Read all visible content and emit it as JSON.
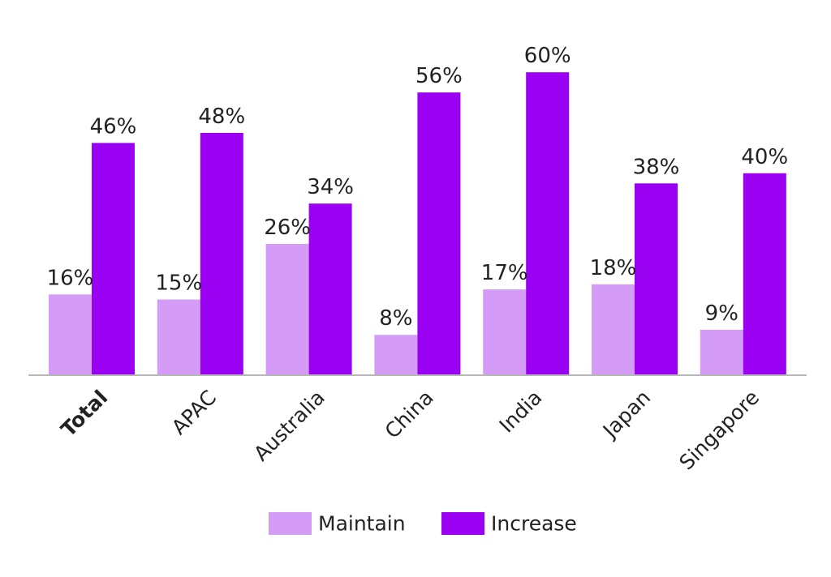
{
  "chart_data": {
    "type": "bar",
    "title": "",
    "xlabel": "",
    "ylabel": "",
    "ylim": [
      0,
      60
    ],
    "grid": false,
    "legend_position": "bottom",
    "categories": [
      "Total",
      "APAC",
      "Australia",
      "China",
      "India",
      "Japan",
      "Singapore"
    ],
    "bold_categories": [
      "Total"
    ],
    "series": [
      {
        "name": "Maintain",
        "color": "#d49cf7",
        "values": [
          16,
          15,
          26,
          8,
          17,
          18,
          9
        ],
        "labels": [
          "16%",
          "15%",
          "26%",
          "8%",
          "17%",
          "18%",
          "9%"
        ]
      },
      {
        "name": "Increase",
        "color": "#9a00f2",
        "values": [
          46,
          48,
          34,
          56,
          60,
          38,
          40
        ],
        "labels": [
          "46%",
          "48%",
          "34%",
          "56%",
          "60%",
          "38%",
          "40%"
        ]
      }
    ]
  }
}
